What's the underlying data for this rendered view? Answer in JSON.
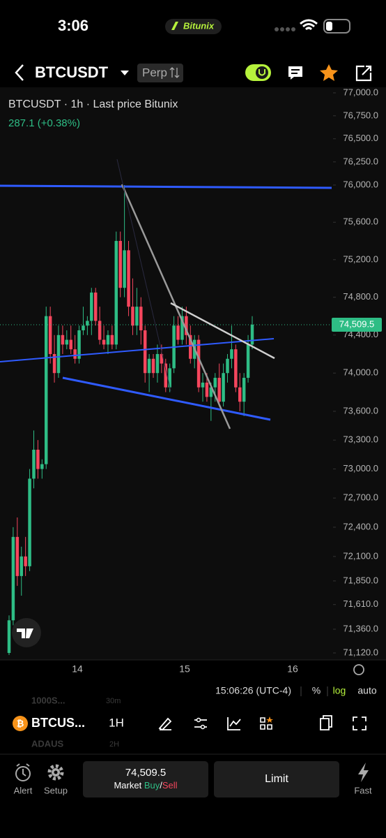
{
  "status_bar": {
    "time": "3:06",
    "brand": "Bitunix"
  },
  "header": {
    "symbol": "BTCUSDT",
    "market": "Perp"
  },
  "chart": {
    "type": "candlestick",
    "legend": "BTCUSDT · 1h · Last price Bitunix",
    "change": "287.1 (+0.38%)",
    "log_scale": true,
    "ylim": [
      71120,
      77000
    ],
    "yticks": [
      {
        "value": 77000,
        "label": "77,000.0"
      },
      {
        "value": 76750,
        "label": "76,750.0"
      },
      {
        "value": 76500,
        "label": "76,500.0"
      },
      {
        "value": 76250,
        "label": "76,250.0"
      },
      {
        "value": 76000,
        "label": "76,000.0"
      },
      {
        "value": 75600,
        "label": "75,600.0"
      },
      {
        "value": 75200,
        "label": "75,200.0"
      },
      {
        "value": 74800,
        "label": "74,800.0"
      },
      {
        "value": 74400,
        "label": "74,400.0"
      },
      {
        "value": 74000,
        "label": "74,000.0"
      },
      {
        "value": 73600,
        "label": "73,600.0"
      },
      {
        "value": 73300,
        "label": "73,300.0"
      },
      {
        "value": 73000,
        "label": "73,000.0"
      },
      {
        "value": 72700,
        "label": "72,700.0"
      },
      {
        "value": 72400,
        "label": "72,400.0"
      },
      {
        "value": 72100,
        "label": "72,100.0"
      },
      {
        "value": 71850,
        "label": "71,850.0"
      },
      {
        "value": 71610,
        "label": "71,610.0"
      },
      {
        "value": 71360,
        "label": "71,360.0"
      },
      {
        "value": 71120,
        "label": "71,120.0"
      }
    ],
    "last_price": {
      "value": 74509.5,
      "label": "74,509.5"
    },
    "xticks": [
      "14",
      "15",
      "16"
    ],
    "up_color": "#2ebd85",
    "down_color": "#f6465d",
    "candles": [
      [
        71120,
        71500,
        71100,
        71450
      ],
      [
        71450,
        72400,
        71400,
        72300
      ],
      [
        72300,
        72500,
        71800,
        71900
      ],
      [
        71900,
        72200,
        71700,
        72100
      ],
      [
        72100,
        72300,
        71900,
        72000
      ],
      [
        72000,
        73000,
        71950,
        72900
      ],
      [
        72900,
        73400,
        72800,
        73200
      ],
      [
        73200,
        73300,
        72900,
        73000
      ],
      [
        73000,
        73100,
        72900,
        73050
      ],
      [
        73050,
        74700,
        73000,
        74600
      ],
      [
        74600,
        74700,
        74100,
        74200
      ],
      [
        74200,
        74400,
        73900,
        74000
      ],
      [
        74000,
        74500,
        73950,
        74400
      ],
      [
        74400,
        74500,
        74200,
        74300
      ],
      [
        74300,
        74450,
        74250,
        74350
      ],
      [
        74350,
        74500,
        74200,
        74250
      ],
      [
        74250,
        74400,
        74100,
        74150
      ],
      [
        74150,
        74500,
        74100,
        74450
      ],
      [
        74450,
        74700,
        74400,
        74500
      ],
      [
        74500,
        74600,
        74400,
        74550
      ],
      [
        74550,
        74900,
        74400,
        74850
      ],
      [
        74850,
        74900,
        74500,
        74550
      ],
      [
        74550,
        74700,
        74300,
        74350
      ],
      [
        74350,
        74500,
        74250,
        74300
      ],
      [
        74300,
        74450,
        74200,
        74400
      ],
      [
        74400,
        74500,
        74250,
        74300
      ],
      [
        74300,
        75500,
        74250,
        75400
      ],
      [
        75400,
        75500,
        74800,
        74900
      ],
      [
        74900,
        76000,
        74800,
        75300
      ],
      [
        75300,
        75400,
        74600,
        74700
      ],
      [
        74700,
        75000,
        74400,
        74500
      ],
      [
        74500,
        74900,
        74400,
        74700
      ],
      [
        74700,
        74800,
        74300,
        74450
      ],
      [
        74450,
        74500,
        73900,
        74000
      ],
      [
        74000,
        74200,
        73800,
        74150
      ],
      [
        74150,
        74200,
        73950,
        74000
      ],
      [
        74000,
        74300,
        73900,
        74200
      ],
      [
        74200,
        74300,
        74000,
        74100
      ],
      [
        74100,
        74150,
        73800,
        73850
      ],
      [
        73850,
        74100,
        73800,
        74050
      ],
      [
        74050,
        74600,
        74000,
        74500
      ],
      [
        74500,
        74600,
        74300,
        74350
      ],
      [
        74350,
        74700,
        74300,
        74600
      ],
      [
        74600,
        74700,
        74300,
        74400
      ],
      [
        74400,
        74500,
        74100,
        74150
      ],
      [
        74150,
        74400,
        74050,
        74350
      ],
      [
        74350,
        74400,
        73800,
        73850
      ],
      [
        73850,
        74000,
        73700,
        73900
      ],
      [
        73900,
        74000,
        73700,
        73750
      ],
      [
        73750,
        73900,
        73500,
        73850
      ],
      [
        73850,
        74000,
        73700,
        73950
      ],
      [
        73950,
        74100,
        73650,
        73700
      ],
      [
        73700,
        74100,
        73650,
        74000
      ],
      [
        74000,
        74200,
        73900,
        74150
      ],
      [
        74150,
        74500,
        74050,
        74250
      ],
      [
        74250,
        74300,
        73800,
        73850
      ],
      [
        73850,
        74000,
        73600,
        73700
      ],
      [
        73700,
        74000,
        73550,
        73950
      ],
      [
        73950,
        74400,
        73900,
        74300
      ],
      [
        74300,
        74600,
        74250,
        74509.5
      ]
    ]
  },
  "chart_toolbar": {
    "time": "15:06:26 (UTC-4)",
    "percent": "%",
    "log": "log",
    "auto": "auto"
  },
  "watchlist": {
    "item1": "1000S...",
    "item1_interval": "30m",
    "item2": "ADAUS",
    "item2_interval": "2H"
  },
  "bottom_toolbar": {
    "symbol": "BTCUS...",
    "interval": "1H"
  },
  "footer": {
    "alert": "Alert",
    "setup": "Setup",
    "price": "74,509.5",
    "market": "Market ",
    "buy": "Buy",
    "slash": "/",
    "sell": "Sell",
    "limit": "Limit",
    "fast": "Fast"
  }
}
